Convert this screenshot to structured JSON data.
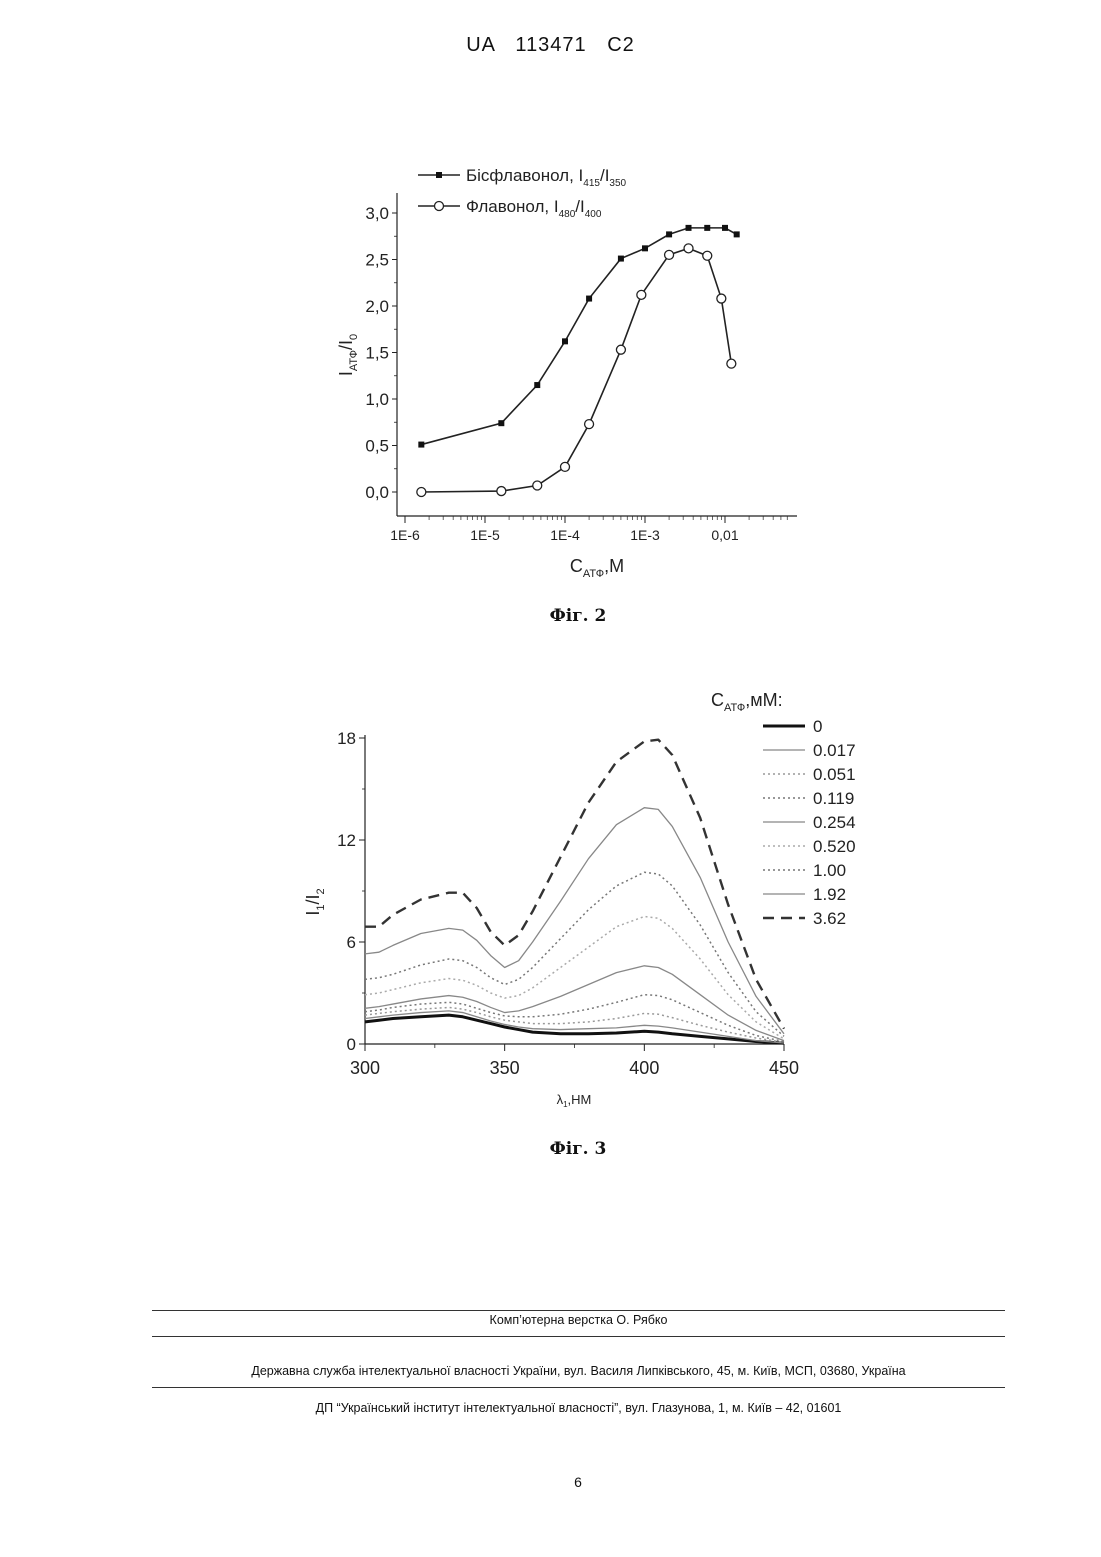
{
  "header": {
    "text": "UA   113471   C2"
  },
  "figures": [
    {
      "caption": "Фіг. 2",
      "chart_data": {
        "type": "line",
        "xscale": "log",
        "xlim": [
          1e-06,
          0.06
        ],
        "ylim": [
          0,
          3.2
        ],
        "xticks": [
          1e-06,
          1e-05,
          0.0001,
          0.001,
          0.01
        ],
        "xtick_labels": [
          "1E-6",
          "1E-5",
          "1E-4",
          "1E-3",
          "0,01"
        ],
        "yticks": [
          0,
          0.5,
          1.0,
          1.5,
          2.0,
          2.5,
          3.0
        ],
        "ytick_labels": [
          "0,0",
          "0,5",
          "1,0",
          "1,5",
          "2,0",
          "2,5",
          "3,0"
        ],
        "xlabel": {
          "main": "C",
          "sub": "АТФ",
          "rest": ",M"
        },
        "ylabel": {
          "a": "I",
          "asub": "АТФ",
          "b": "/I",
          "bsub": "0"
        },
        "legend_position": "top-left",
        "series": [
          {
            "legend": {
              "name": "Бісфлавонол, I",
              "sub1": "415",
              "mid": "/I",
              "sub2": "350"
            },
            "marker": "filled-square",
            "x": [
              1.6e-06,
              1.6e-05,
              4.5e-05,
              0.0001,
              0.0002,
              0.0005,
              0.001,
              0.002,
              0.0035,
              0.006,
              0.01,
              0.014
            ],
            "y": [
              0.51,
              0.74,
              1.15,
              1.62,
              2.08,
              2.51,
              2.62,
              2.77,
              2.84,
              2.84,
              2.84,
              2.77
            ]
          },
          {
            "legend": {
              "name": "Флавонол, I",
              "sub1": "480",
              "mid": "/I",
              "sub2": "400"
            },
            "marker": "open-circle",
            "x": [
              1.6e-06,
              1.6e-05,
              4.5e-05,
              0.0001,
              0.0002,
              0.0005,
              0.0009,
              0.002,
              0.0035,
              0.006,
              0.009,
              0.012
            ],
            "y": [
              0.0,
              0.01,
              0.07,
              0.27,
              0.73,
              1.53,
              2.12,
              2.55,
              2.62,
              2.54,
              2.08,
              1.38
            ]
          }
        ]
      }
    },
    {
      "caption": "Фіг. 3",
      "chart_data": {
        "type": "line",
        "x": [
          300,
          305,
          310,
          320,
          330,
          335,
          340,
          345,
          350,
          355,
          360,
          370,
          380,
          390,
          400,
          405,
          410,
          420,
          430,
          440,
          450
        ],
        "xlim": [
          300,
          450
        ],
        "ylim": [
          0,
          18
        ],
        "xticks": [
          300,
          350,
          400,
          450
        ],
        "yticks": [
          0,
          6,
          12,
          18
        ],
        "xlabel": {
          "main": "λ",
          "sub": "1",
          "rest": ",НМ"
        },
        "ylabel": {
          "a": "I",
          "asub": "1",
          "b": "/I",
          "bsub": "2"
        },
        "legend_title": {
          "main": "C",
          "sub": "АТФ",
          "rest": ",мМ:"
        },
        "legend_position": "right",
        "series": [
          {
            "name": "0",
            "style": "thick-solid",
            "color": "#111111",
            "values": [
              1.3,
              1.4,
              1.5,
              1.6,
              1.7,
              1.6,
              1.4,
              1.2,
              1.0,
              0.85,
              0.7,
              0.6,
              0.6,
              0.65,
              0.75,
              0.7,
              0.6,
              0.45,
              0.3,
              0.15,
              0.05
            ]
          },
          {
            "name": "0.017",
            "style": "solid",
            "color": "#888888",
            "values": [
              1.5,
              1.6,
              1.7,
              1.85,
              1.95,
              1.85,
              1.6,
              1.35,
              1.15,
              1.0,
              0.9,
              0.85,
              0.9,
              0.95,
              1.1,
              1.05,
              0.95,
              0.7,
              0.45,
              0.2,
              0.06
            ]
          },
          {
            "name": "0.051",
            "style": "dotted",
            "color": "#999999",
            "values": [
              1.7,
              1.8,
              1.9,
              2.05,
              2.15,
              2.05,
              1.85,
              1.6,
              1.4,
              1.3,
              1.2,
              1.2,
              1.3,
              1.5,
              1.8,
              1.75,
              1.55,
              1.1,
              0.7,
              0.35,
              0.1
            ]
          },
          {
            "name": "0.119",
            "style": "dotted",
            "color": "#777777",
            "values": [
              1.9,
              2.0,
              2.15,
              2.35,
              2.45,
              2.35,
              2.1,
              1.85,
              1.65,
              1.6,
              1.6,
              1.75,
              2.05,
              2.45,
              2.9,
              2.85,
              2.6,
              1.85,
              1.1,
              0.5,
              0.14
            ]
          },
          {
            "name": "0.254",
            "style": "solid",
            "color": "#888888",
            "values": [
              2.1,
              2.2,
              2.35,
              2.65,
              2.85,
              2.75,
              2.5,
              2.15,
              1.85,
              1.95,
              2.2,
              2.8,
              3.5,
              4.2,
              4.6,
              4.5,
              4.1,
              2.9,
              1.7,
              0.8,
              0.2
            ]
          },
          {
            "name": "0.520",
            "style": "dotted",
            "color": "#aaaaaa",
            "values": [
              2.9,
              3.0,
              3.2,
              3.6,
              3.85,
              3.75,
              3.45,
              3.0,
              2.7,
              2.85,
              3.3,
              4.5,
              5.7,
              6.9,
              7.5,
              7.4,
              6.8,
              5.0,
              2.9,
              1.3,
              0.3
            ]
          },
          {
            "name": "1.00",
            "style": "dotted",
            "color": "#777777",
            "values": [
              3.8,
              3.9,
              4.1,
              4.65,
              5.0,
              4.9,
              4.5,
              3.9,
              3.5,
              3.8,
              4.5,
              6.2,
              7.9,
              9.3,
              10.1,
              10.0,
              9.3,
              7.0,
              4.2,
              1.9,
              0.45
            ]
          },
          {
            "name": "1.92",
            "style": "solid",
            "color": "#888888",
            "values": [
              5.3,
              5.4,
              5.8,
              6.5,
              6.8,
              6.7,
              6.1,
              5.2,
              4.5,
              4.9,
              6.0,
              8.4,
              10.9,
              12.9,
              13.9,
              13.8,
              12.8,
              9.8,
              6.0,
              2.8,
              0.6
            ]
          },
          {
            "name": "3.62",
            "style": "dashed",
            "color": "#333333",
            "values": [
              6.9,
              6.9,
              7.6,
              8.5,
              8.9,
              8.9,
              8.0,
              6.6,
              5.8,
              6.4,
              7.8,
              11.0,
              14.2,
              16.6,
              17.8,
              17.9,
              17.0,
              13.3,
              8.2,
              3.8,
              0.9
            ]
          }
        ]
      }
    }
  ],
  "footer": {
    "line1": "Комп’ютерна верстка О. Рябко",
    "line2": "Державна служба інтелектуальної власності України, вул. Василя Липківського, 45, м. Київ, МСП, 03680, Україна",
    "line3": "ДП “Український інститут інтелектуальної власності”, вул. Глазунова, 1, м. Київ – 42, 01601"
  },
  "page_number": "6"
}
